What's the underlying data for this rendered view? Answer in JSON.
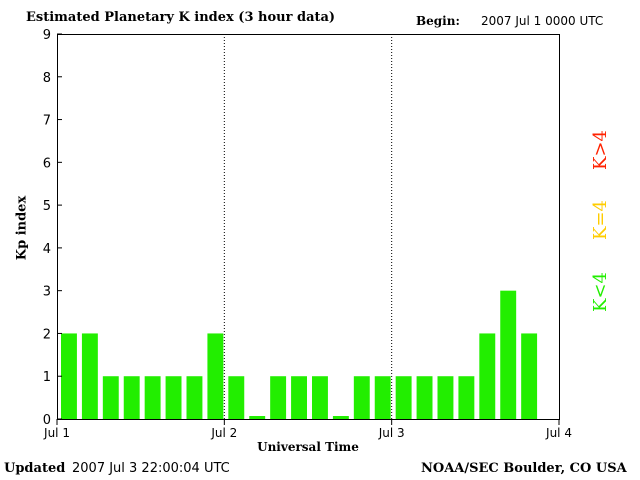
{
  "title": "Estimated Planetary K index (3 hour data)",
  "begin_label": "Begin:",
  "begin_value": "2007 Jul 1 0000 UTC",
  "footer": {
    "updated_label": "Updated",
    "updated_value": "2007 Jul  3 22:00:04 UTC",
    "source": "NOAA/SEC Boulder, CO USA"
  },
  "colors": {
    "low": "#22ee00",
    "medium": "#ffcc00",
    "high": "#ff2200"
  },
  "legend": {
    "high_label": "K>4",
    "medium_label": "K=4",
    "low_label": "K<4"
  },
  "chart_data": {
    "type": "bar",
    "title": "Estimated Planetary K index (3 hour data)",
    "xlabel": "Universal Time",
    "ylabel": "Kp index",
    "ylim": [
      0,
      9
    ],
    "yticks": [
      "0",
      "1",
      "2",
      "3",
      "4",
      "5",
      "6",
      "7",
      "8",
      "9"
    ],
    "xticks": [
      "Jul 1",
      "Jul 2",
      "Jul 3",
      "Jul 4"
    ],
    "day_dividers": [
      "Jul 2",
      "Jul 3"
    ],
    "bars_per_day": 8,
    "values": [
      2,
      2,
      1,
      1,
      1,
      1,
      1,
      2,
      1,
      0.07,
      1,
      1,
      1,
      0.07,
      1,
      1,
      1,
      1,
      1,
      1,
      2,
      3,
      2
    ]
  }
}
